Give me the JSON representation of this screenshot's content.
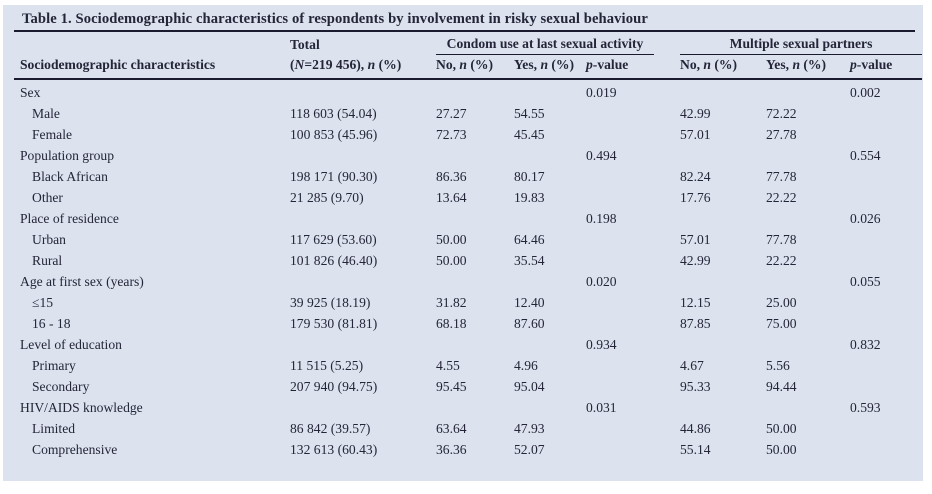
{
  "title": "Table 1. Sociodemographic characteristics of respondents by involvement in risky sexual behaviour",
  "colors": {
    "panel_background": "#dce3ef",
    "text": "#242538",
    "rule": "#1a1b2e"
  },
  "header": {
    "col1": "Sociodemographic characteristics",
    "total_label": "Total",
    "total_sub": {
      "p1": "(",
      "i1": "N",
      "p2": "=219 456), ",
      "i2": "n",
      "p3": " (%)"
    },
    "condom_group": "Condom use at last sexual activity",
    "multiple_group": "Multiple sexual partners",
    "no_label": {
      "p1": "No, ",
      "i": "n",
      "p2": " (%)"
    },
    "yes_label": {
      "p1": "Yes, ",
      "i": "n",
      "p2": " (%)"
    },
    "p_label": {
      "i": "p",
      "p2": "-value"
    }
  },
  "rows": [
    {
      "label": "Sex",
      "total": "",
      "condom_no": "",
      "condom_yes": "",
      "condom_p": "0.019",
      "multi_no": "",
      "multi_yes": "",
      "multi_p": "0.002"
    },
    {
      "label": "Male",
      "total": "118 603 (54.04)",
      "condom_no": "27.27",
      "condom_yes": "54.55",
      "condom_p": "",
      "multi_no": "42.99",
      "multi_yes": "72.22",
      "multi_p": ""
    },
    {
      "label": "Female",
      "total": "100 853 (45.96)",
      "condom_no": "72.73",
      "condom_yes": "45.45",
      "condom_p": "",
      "multi_no": "57.01",
      "multi_yes": "27.78",
      "multi_p": ""
    },
    {
      "label": "Population group",
      "total": "",
      "condom_no": "",
      "condom_yes": "",
      "condom_p": "0.494",
      "multi_no": "",
      "multi_yes": "",
      "multi_p": "0.554"
    },
    {
      "label": "Black African",
      "total": "198 171 (90.30)",
      "condom_no": "86.36",
      "condom_yes": "80.17",
      "condom_p": "",
      "multi_no": "82.24",
      "multi_yes": "77.78",
      "multi_p": ""
    },
    {
      "label": "Other",
      "total": "21 285 (9.70)",
      "condom_no": "13.64",
      "condom_yes": "19.83",
      "condom_p": "",
      "multi_no": "17.76",
      "multi_yes": "22.22",
      "multi_p": ""
    },
    {
      "label": "Place of residence",
      "total": "",
      "condom_no": "",
      "condom_yes": "",
      "condom_p": "0.198",
      "multi_no": "",
      "multi_yes": "",
      "multi_p": "0.026"
    },
    {
      "label": "Urban",
      "total": "117 629 (53.60)",
      "condom_no": "50.00",
      "condom_yes": "64.46",
      "condom_p": "",
      "multi_no": "57.01",
      "multi_yes": "77.78",
      "multi_p": ""
    },
    {
      "label": "Rural",
      "total": "101 826 (46.40)",
      "condom_no": "50.00",
      "condom_yes": "35.54",
      "condom_p": "",
      "multi_no": "42.99",
      "multi_yes": "22.22",
      "multi_p": ""
    },
    {
      "label": "Age at first sex (years)",
      "total": "",
      "condom_no": "",
      "condom_yes": "",
      "condom_p": "0.020",
      "multi_no": "",
      "multi_yes": "",
      "multi_p": "0.055"
    },
    {
      "label": "≤15",
      "total": "39 925 (18.19)",
      "condom_no": "31.82",
      "condom_yes": "12.40",
      "condom_p": "",
      "multi_no": "12.15",
      "multi_yes": "25.00",
      "multi_p": ""
    },
    {
      "label": "16 - 18",
      "total": "179 530 (81.81)",
      "condom_no": "68.18",
      "condom_yes": "87.60",
      "condom_p": "",
      "multi_no": "87.85",
      "multi_yes": "75.00",
      "multi_p": ""
    },
    {
      "label": "Level of education",
      "total": "",
      "condom_no": "",
      "condom_yes": "",
      "condom_p": "0.934",
      "multi_no": "",
      "multi_yes": "",
      "multi_p": "0.832"
    },
    {
      "label": "Primary",
      "total": "11 515 (5.25)",
      "condom_no": "4.55",
      "condom_yes": "4.96",
      "condom_p": "",
      "multi_no": "4.67",
      "multi_yes": "5.56",
      "multi_p": ""
    },
    {
      "label": "Secondary",
      "total": "207 940 (94.75)",
      "condom_no": "95.45",
      "condom_yes": "95.04",
      "condom_p": "",
      "multi_no": "95.33",
      "multi_yes": "94.44",
      "multi_p": ""
    },
    {
      "label": "HIV/AIDS knowledge",
      "total": "",
      "condom_no": "",
      "condom_yes": "",
      "condom_p": "0.031",
      "multi_no": "",
      "multi_yes": "",
      "multi_p": "0.593"
    },
    {
      "label": "Limited",
      "total": "86 842 (39.57)",
      "condom_no": "63.64",
      "condom_yes": "47.93",
      "condom_p": "",
      "multi_no": "44.86",
      "multi_yes": "50.00",
      "multi_p": ""
    },
    {
      "label": "Comprehensive",
      "total": "132 613 (60.43)",
      "condom_no": "36.36",
      "condom_yes": "52.07",
      "condom_p": "",
      "multi_no": "55.14",
      "multi_yes": "50.00",
      "multi_p": ""
    }
  ]
}
